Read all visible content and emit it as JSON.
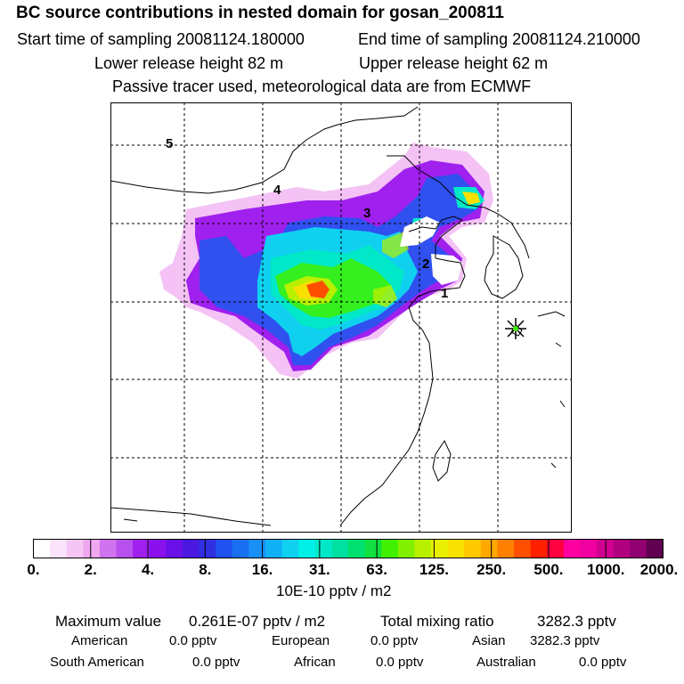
{
  "header": {
    "title": "BC  source contributions in nested domain for gosan_200811",
    "start_label": "Start time of sampling 20081124.180000",
    "end_label": "End time of sampling 20081124.210000",
    "lower_label": "Lower release height   82 m",
    "upper_label": "Upper release height   62 m",
    "note": "Passive tracer used, meteorological data are from ECMWF"
  },
  "map": {
    "site_labels": [
      "5",
      "4",
      "3",
      "2",
      "1"
    ],
    "receptor_marker": "star-icon"
  },
  "colorbar": {
    "tick_labels": [
      "0.",
      "2.",
      "4.",
      "8.",
      "16.",
      "31.",
      "63.",
      "125.",
      "250.",
      "500.",
      "1000.",
      "2000."
    ],
    "unit": "10E-10 pptv / m2",
    "colors": [
      "#ffffff",
      "#fbe4fb",
      "#f5c6f5",
      "#efa8ef",
      "#cf73ef",
      "#b850ee",
      "#a020ee",
      "#8a10ee",
      "#6a10e8",
      "#4a18e0",
      "#3030e0",
      "#2050f0",
      "#1870f0",
      "#1890f5",
      "#10b0f5",
      "#10d0f0",
      "#00f0e8",
      "#00e8c8",
      "#00e0a0",
      "#00e070",
      "#10e040",
      "#40f000",
      "#80f000",
      "#b8f000",
      "#e8f000",
      "#f8e000",
      "#ffc800",
      "#ffa800",
      "#ff8000",
      "#ff5000",
      "#ff2000",
      "#ff0040",
      "#ff00a0",
      "#f000a0",
      "#d00090",
      "#b00080",
      "#900070",
      "#600050"
    ]
  },
  "stats": {
    "max_label": "Maximum value",
    "max_value": "0.261E-07 pptv / m2",
    "total_label": "Total mixing ratio",
    "total_value": "3282.3 pptv",
    "regions": [
      {
        "name": "American",
        "value": "0.0 pptv"
      },
      {
        "name": "European",
        "value": "0.0 pptv"
      },
      {
        "name": "Asian",
        "value": "3282.3 pptv"
      },
      {
        "name": "South American",
        "value": "0.0 pptv"
      },
      {
        "name": "African",
        "value": "0.0 pptv"
      },
      {
        "name": "Australian",
        "value": "0.0 pptv"
      }
    ]
  }
}
